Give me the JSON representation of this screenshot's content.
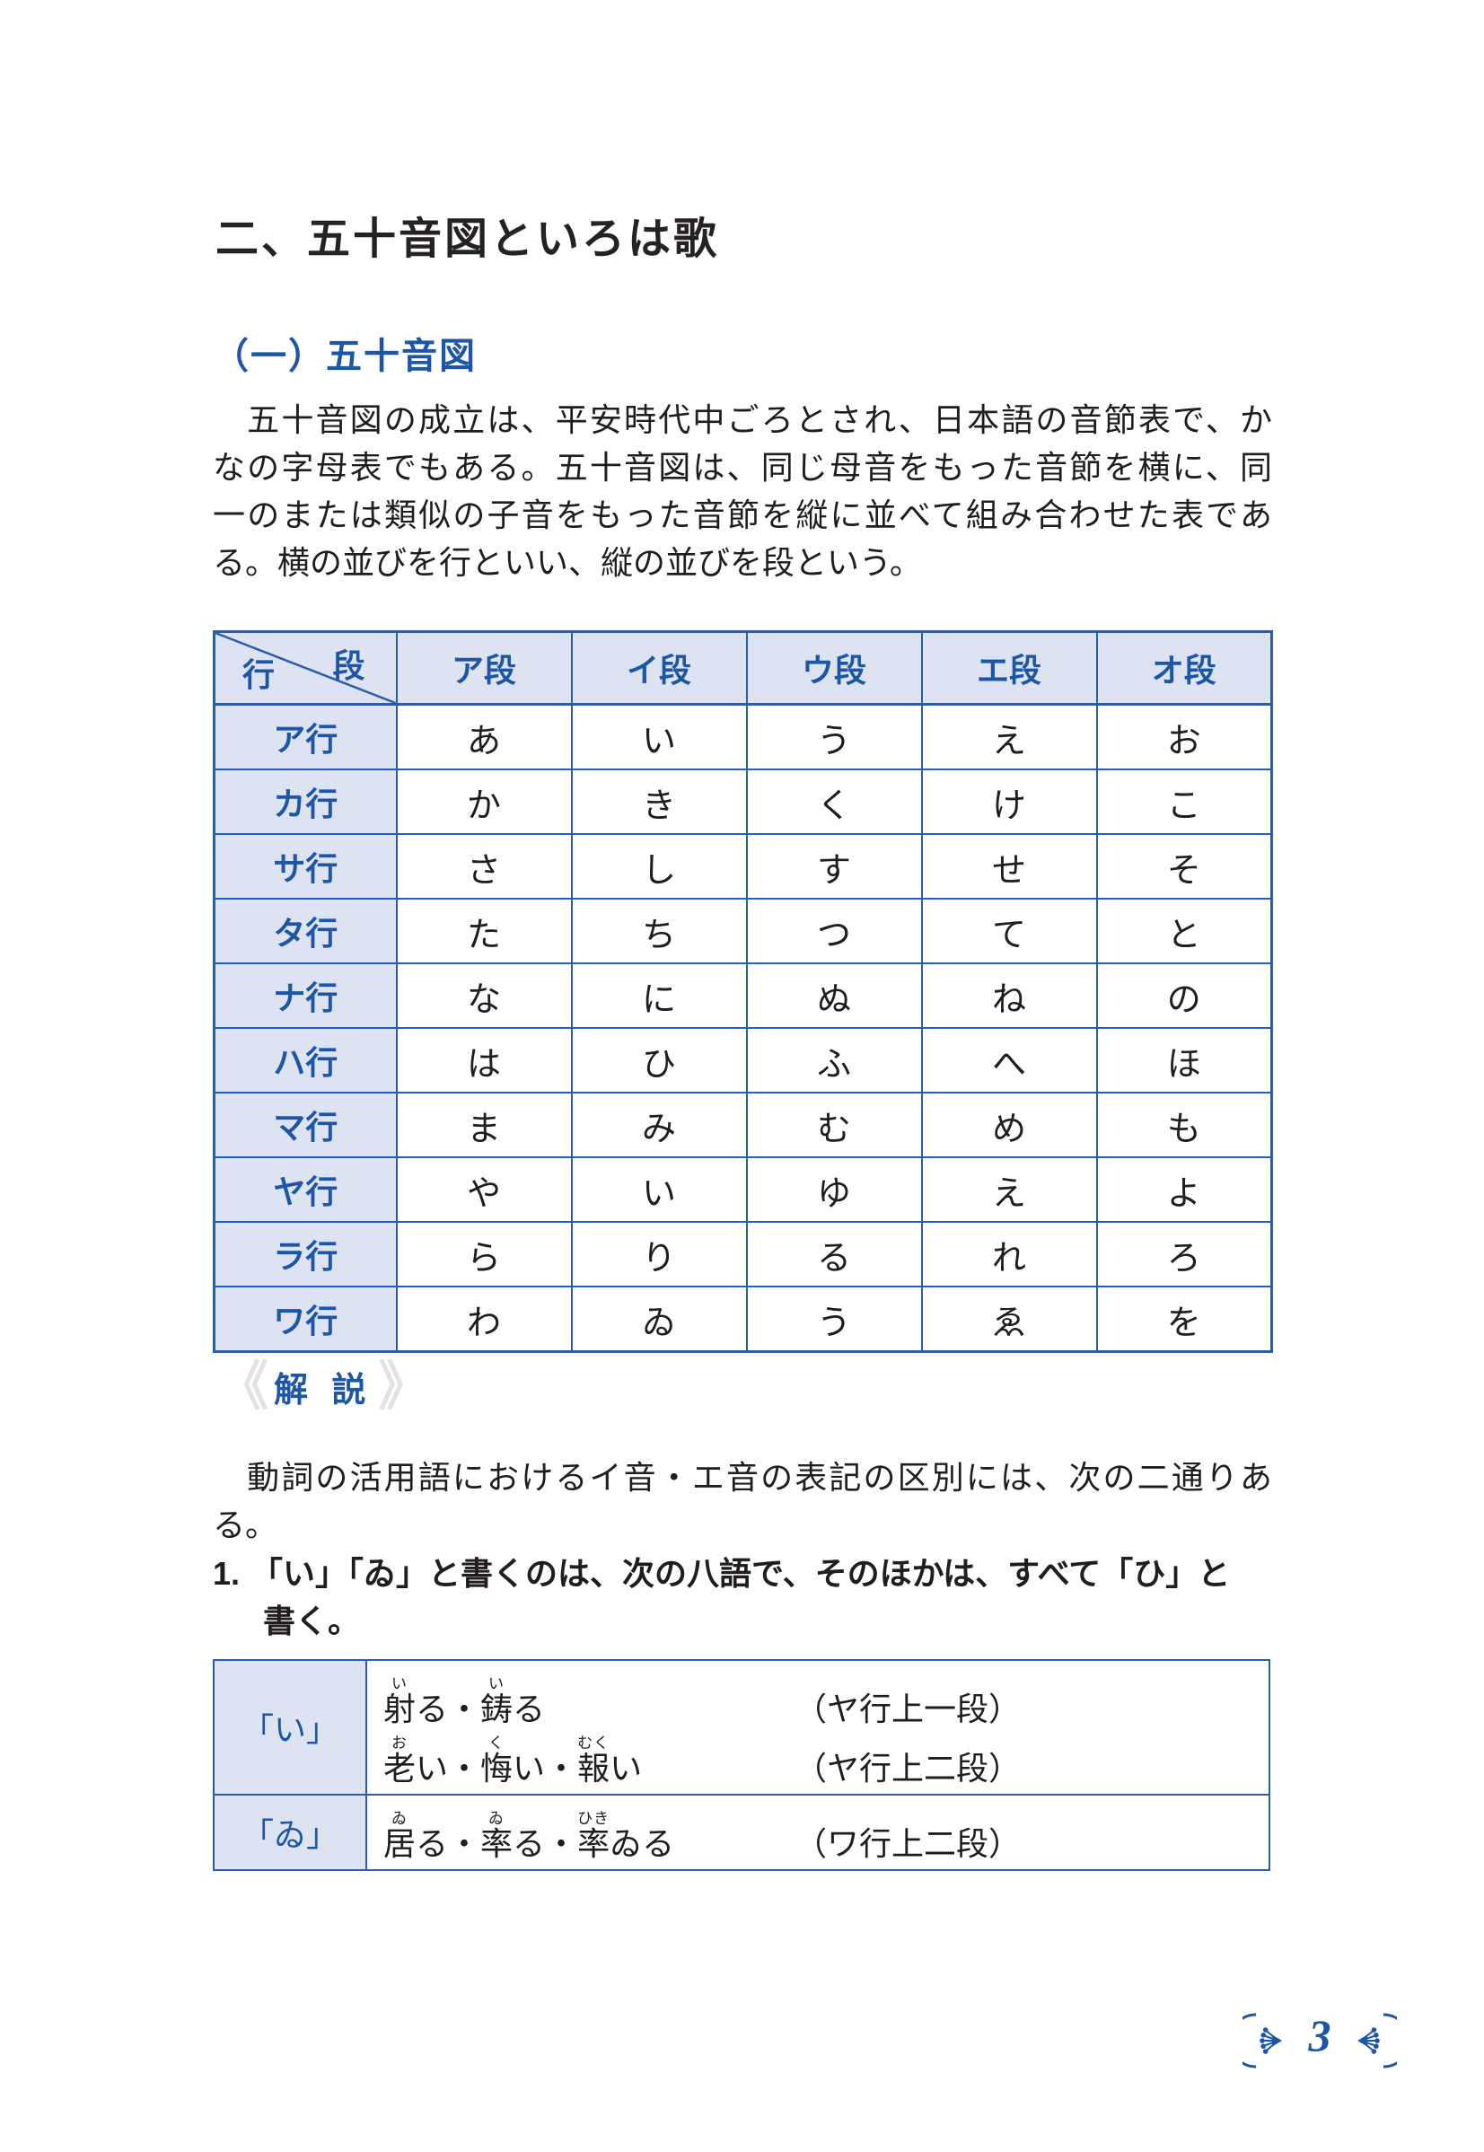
{
  "page": {
    "chapter_title": "二、五十音図といろは歌",
    "section_title": "（一）五十音図",
    "intro_lines": [
      "　五十音図の成立は、平安時代中ごろとされ、日本語の音節表で、か",
      "なの字母表でもある。五十音図は、同じ母音をもった音節を横に、同",
      "一のまたは類似の子音をもった音節を縦に並べて組み合わせた表であ",
      "る。横の並びを行といい、縦の並びを段という。"
    ],
    "kaisetsu": {
      "chevron_left": "《",
      "label": "解 説",
      "chevron_right": "》"
    },
    "explanation_lines": [
      "　動詞の活用語におけるイ音・エ音の表記の区別には、次の二通りあ",
      "る。"
    ],
    "list_item": {
      "number": "1.",
      "line1": "「い」「ゐ」と書くのは、次の八語で、そのほかは、すべて「ひ」と",
      "line2": "書く。"
    },
    "page_number": "3"
  },
  "gojuon_table": {
    "corner": {
      "top_right": "段",
      "bottom_left": "行"
    },
    "column_headers": [
      "ア段",
      "イ段",
      "ウ段",
      "エ段",
      "オ段"
    ],
    "rows": [
      {
        "header": "ア行",
        "cells": [
          "あ",
          "い",
          "う",
          "え",
          "お"
        ]
      },
      {
        "header": "カ行",
        "cells": [
          "か",
          "き",
          "く",
          "け",
          "こ"
        ]
      },
      {
        "header": "サ行",
        "cells": [
          "さ",
          "し",
          "す",
          "せ",
          "そ"
        ]
      },
      {
        "header": "タ行",
        "cells": [
          "た",
          "ち",
          "つ",
          "て",
          "と"
        ]
      },
      {
        "header": "ナ行",
        "cells": [
          "な",
          "に",
          "ぬ",
          "ね",
          "の"
        ]
      },
      {
        "header": "ハ行",
        "cells": [
          "は",
          "ひ",
          "ふ",
          "へ",
          "ほ"
        ]
      },
      {
        "header": "マ行",
        "cells": [
          "ま",
          "み",
          "む",
          "め",
          "も"
        ]
      },
      {
        "header": "ヤ行",
        "cells": [
          "や",
          "い",
          "ゆ",
          "え",
          "よ"
        ]
      },
      {
        "header": "ラ行",
        "cells": [
          "ら",
          "り",
          "る",
          "れ",
          "ろ"
        ]
      },
      {
        "header": "ワ行",
        "cells": [
          "わ",
          "ゐ",
          "う",
          "ゑ",
          "を"
        ]
      }
    ]
  },
  "examples_table": {
    "rows": [
      {
        "label": "「い」",
        "lines": [
          {
            "segments": [
              {
                "base": "射",
                "ruby": "い"
              },
              {
                "text": "る・"
              },
              {
                "base": "鋳",
                "ruby": "い"
              },
              {
                "text": "る"
              }
            ],
            "note": "（ヤ行上一段）"
          },
          {
            "segments": [
              {
                "base": "老",
                "ruby": "お"
              },
              {
                "text": "い・"
              },
              {
                "base": "悔",
                "ruby": "く"
              },
              {
                "text": "い・"
              },
              {
                "base": "報",
                "ruby": "むく"
              },
              {
                "text": "い"
              }
            ],
            "note": "（ヤ行上二段）"
          }
        ]
      },
      {
        "label": "「ゐ」",
        "lines": [
          {
            "segments": [
              {
                "base": "居",
                "ruby": "ゐ"
              },
              {
                "text": "る・"
              },
              {
                "base": "率",
                "ruby": "ゐ"
              },
              {
                "text": "る・"
              },
              {
                "base": "率",
                "ruby": "ひき"
              },
              {
                "text": "ゐる"
              }
            ],
            "note": "（ワ行上二段）"
          }
        ]
      }
    ]
  },
  "colors": {
    "brand_blue": "#1d56a5",
    "border_blue": "#2b5dab",
    "header_cell_bg": "#dde3f1",
    "text_black": "#211d1e",
    "chevron_gray": "#e4e2e0"
  }
}
